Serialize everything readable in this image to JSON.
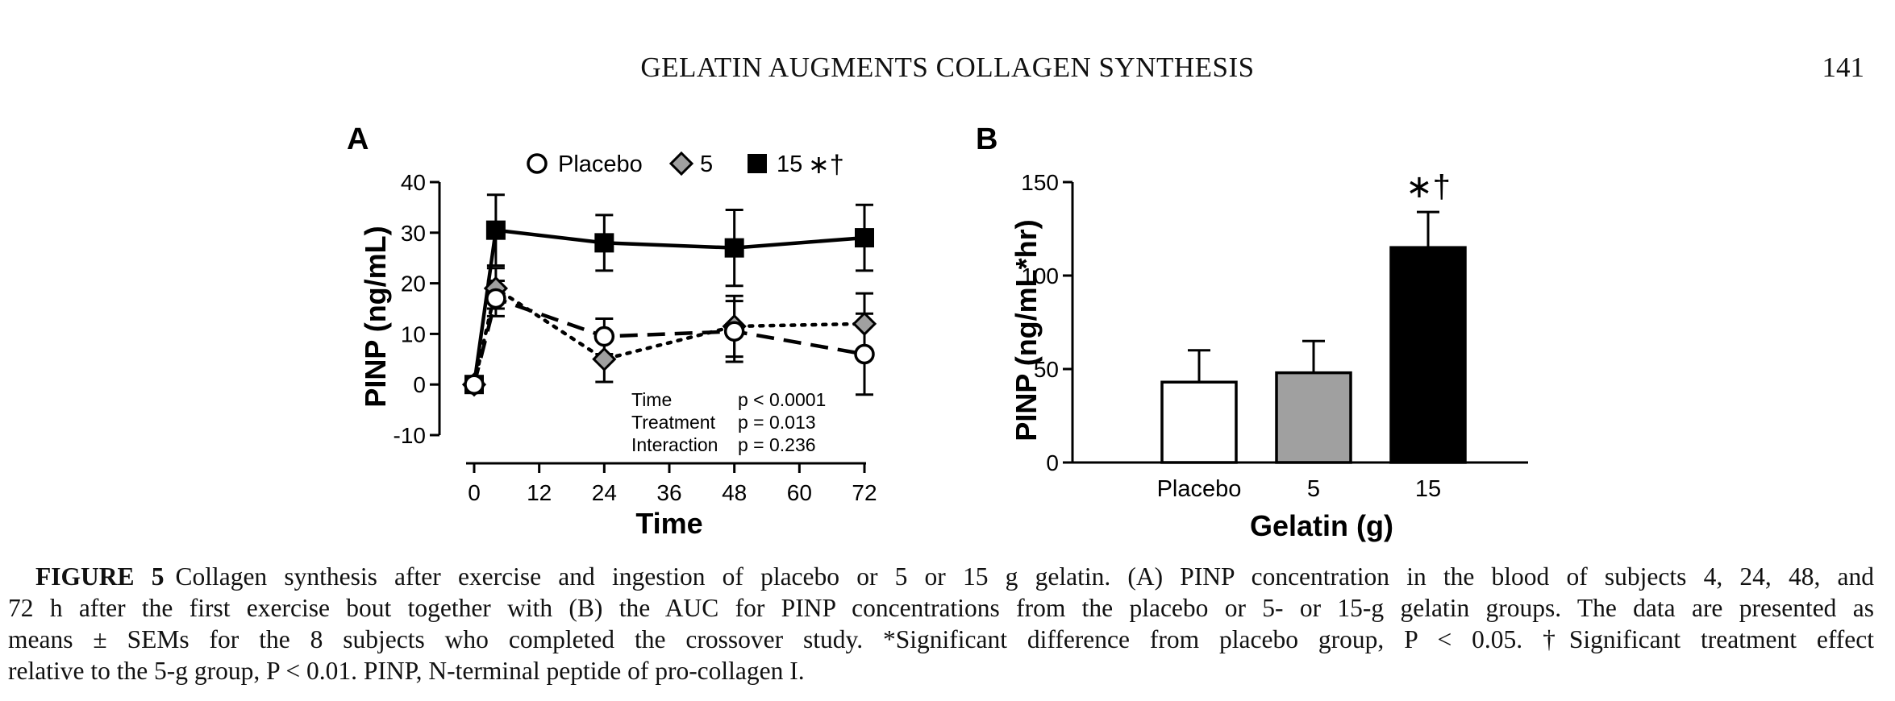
{
  "page": {
    "running_head": "GELATIN AUGMENTS COLLAGEN SYNTHESIS",
    "page_number": "141"
  },
  "figure": {
    "panel_a_label": "A",
    "panel_b_label": "B",
    "colors": {
      "placebo": "#ffffff",
      "gelatin_5": "#a0a0a0",
      "gelatin_15": "#000000",
      "axis": "#000000"
    }
  },
  "chart_data": [
    {
      "type": "line",
      "panel": "A",
      "xlabel": "Time",
      "ylabel": "PINP (ng/mL)",
      "xlim": [
        0,
        72
      ],
      "ylim": [
        -10,
        40
      ],
      "xticks": [
        "0",
        "12",
        "24",
        "36",
        "48",
        "60",
        "72"
      ],
      "yticks": [
        "-10",
        "0",
        "10",
        "20",
        "30",
        "40"
      ],
      "x": [
        0,
        4,
        24,
        48,
        72
      ],
      "legend_position": "top",
      "series": [
        {
          "name": "Placebo",
          "marker": "circle",
          "line": "dashed",
          "values": [
            0,
            17,
            9.5,
            10.5,
            6
          ],
          "sem": [
            0,
            3.5,
            3.5,
            6,
            8
          ]
        },
        {
          "name": "5",
          "marker": "diamond",
          "line": "dotted",
          "values": [
            0,
            19,
            5,
            11.5,
            12
          ],
          "sem": [
            0,
            4,
            4.5,
            6,
            6
          ]
        },
        {
          "name": "15",
          "marker": "square",
          "line": "solid",
          "values": [
            0,
            30.5,
            28,
            27,
            29
          ],
          "sem": [
            0,
            7,
            5.5,
            7.5,
            6.5
          ]
        }
      ],
      "legend_suffix": "∗†",
      "annotations": [
        {
          "label": "Time",
          "value": "p < 0.0001"
        },
        {
          "label": "Treatment",
          "value": "p = 0.013"
        },
        {
          "label": "Interaction",
          "value": "p = 0.236"
        }
      ],
      "grid": false
    },
    {
      "type": "bar",
      "panel": "B",
      "xlabel": "Gelatin (g)",
      "ylabel": "PINP (ng/mL*hr)",
      "ylim": [
        0,
        150
      ],
      "yticks": [
        "0",
        "50",
        "100",
        "150"
      ],
      "categories": [
        "Placebo",
        "5",
        "15"
      ],
      "values": [
        43,
        48,
        115
      ],
      "sem": [
        17,
        17,
        19
      ],
      "significance": [
        "",
        "",
        "∗†"
      ],
      "grid": false
    }
  ],
  "caption": {
    "label": "FIGURE 5",
    "lines": [
      "Collagen synthesis after exercise and ingestion of placebo or 5 or 15 g gelatin. (A) PINP concentration in the blood of subjects 4, 24, 48, and",
      "72 h after the first exercise bout together with (B) the AUC for PINP concentrations from the placebo or 5- or 15-g gelatin groups. The data are presented as",
      "means ± SEMs for the 8 subjects who completed the crossover study. *Significant difference from placebo group, P < 0.05. †Significant treatment effect",
      "relative to the 5-g group, P < 0.01. PINP, N-terminal peptide of pro-collagen I."
    ]
  }
}
